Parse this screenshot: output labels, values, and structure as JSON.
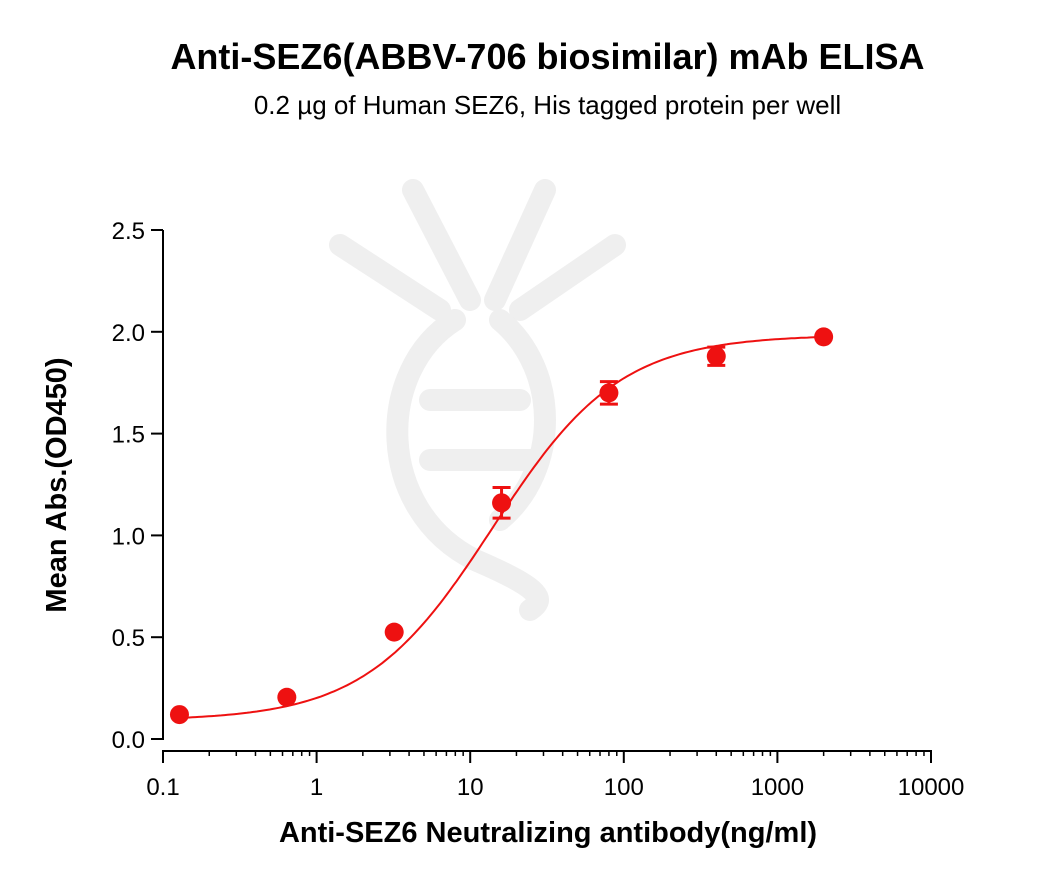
{
  "chart_data": {
    "type": "scatter",
    "title": "Anti-SEZ6(ABBV-706 biosimilar) mAb ELISA",
    "subtitle": "0.2 µg of Human SEZ6, His tagged protein per well",
    "xlabel": "Anti-SEZ6 Neutralizing antibody(ng/ml)",
    "ylabel": "Mean Abs.(OD450)",
    "x_scale": "log",
    "xlim": [
      0.1,
      10000
    ],
    "ylim": [
      0,
      2.5
    ],
    "x_ticks": [
      "0.1",
      "1",
      "10",
      "100",
      "1000",
      "10000"
    ],
    "y_ticks": [
      "0.0",
      "0.5",
      "1.0",
      "1.5",
      "2.0",
      "2.5"
    ],
    "grid": false,
    "series": [
      {
        "color": "#ee1111",
        "x": [
          0.128,
          0.64,
          3.2,
          16,
          80,
          400,
          2000
        ],
        "y": [
          0.12,
          0.205,
          0.525,
          1.16,
          1.7,
          1.88,
          1.975
        ],
        "error": [
          0.0,
          0.0,
          0.0,
          0.075,
          0.055,
          0.045,
          0.0
        ],
        "fit": {
          "model": "4PL sigmoidal",
          "bottom": 0.09,
          "top": 1.985,
          "ec50": 14,
          "hill": 1.05
        }
      }
    ]
  }
}
